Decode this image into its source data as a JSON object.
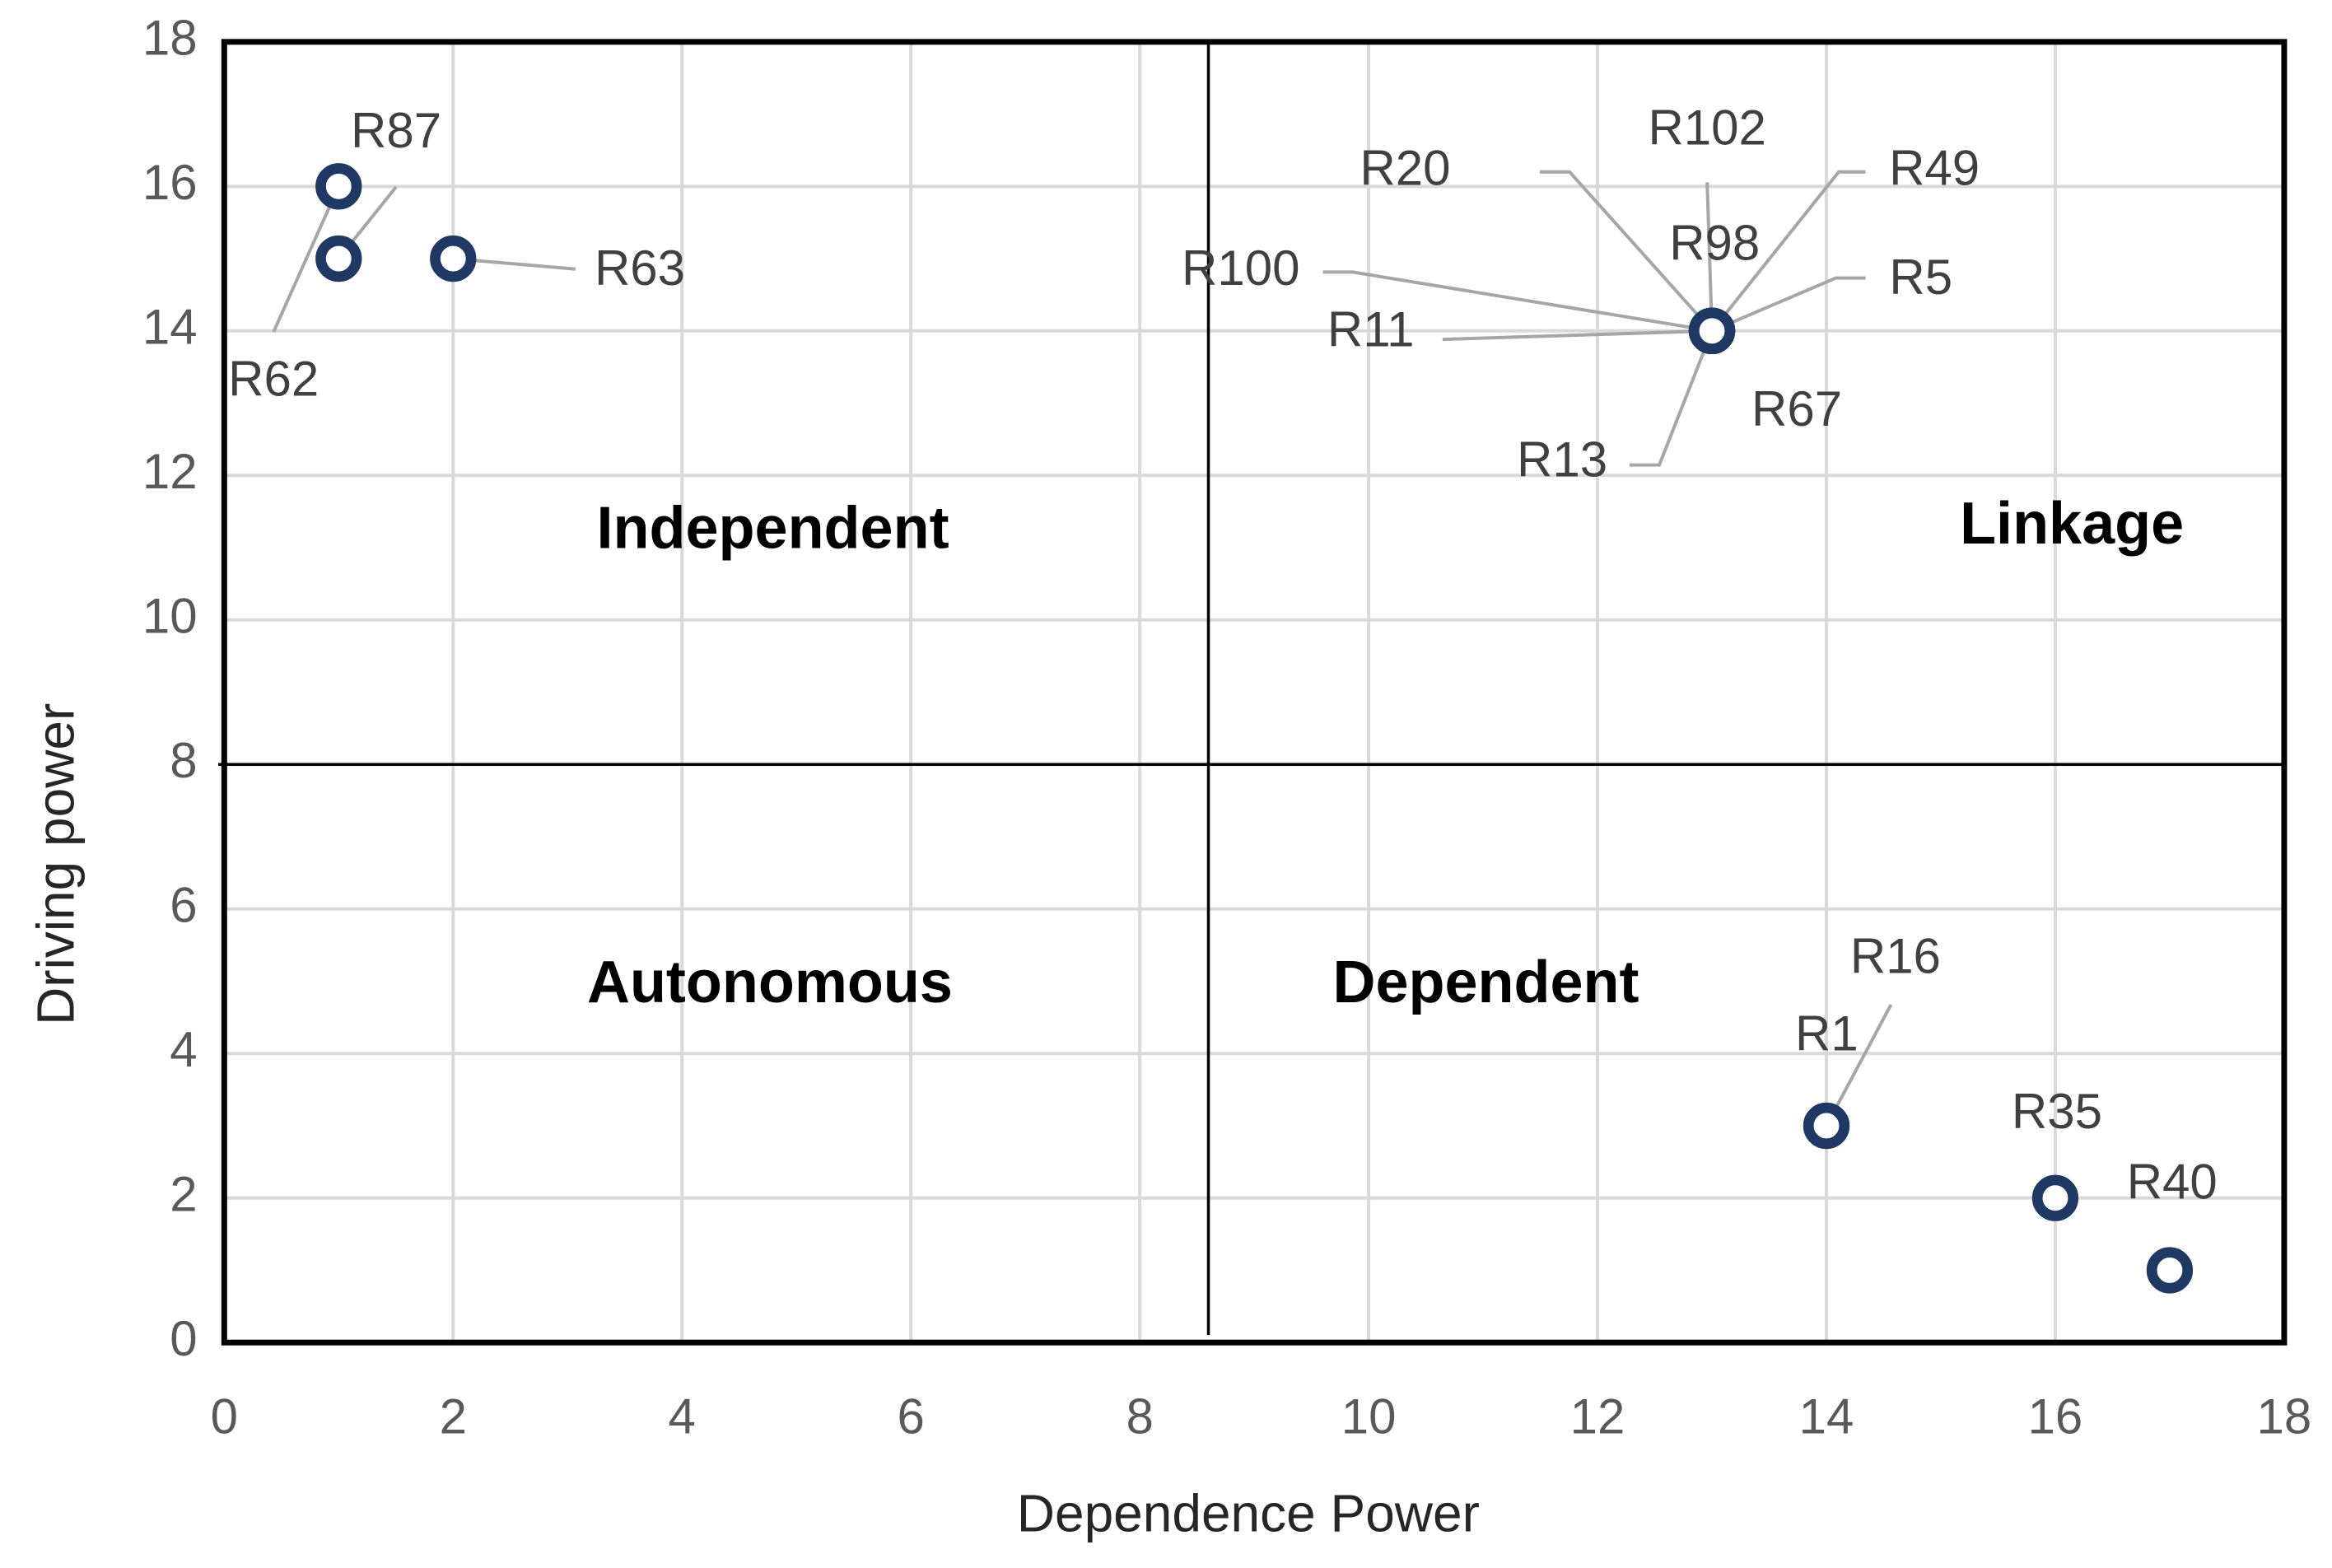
{
  "chart_data": {
    "type": "scatter",
    "x_label": "Dependence Power",
    "y_label": "Driving power",
    "labels": [
      "R87",
      "R62",
      "R63",
      "R20",
      "R102",
      "R49",
      "R100",
      "R98",
      "R5",
      "R11",
      "R67",
      "R13",
      "R1",
      "R16",
      "R35",
      "R40"
    ],
    "x": [
      1,
      1,
      2,
      13,
      13,
      13,
      13,
      13,
      13,
      13,
      13,
      13,
      14,
      14,
      16,
      17
    ],
    "values": [
      15,
      16,
      15,
      14,
      14,
      14,
      14,
      14,
      14,
      14,
      14,
      14,
      3,
      3,
      2,
      1
    ],
    "color": "#1f3864",
    "xlim": [
      0,
      18
    ],
    "ylim": [
      0,
      18
    ],
    "xticks": [
      0,
      2,
      4,
      6,
      8,
      10,
      12,
      14,
      16,
      18
    ],
    "yticks": [
      0,
      2,
      4,
      6,
      8,
      10,
      12,
      14,
      16,
      18
    ],
    "grid": true,
    "quadrant_lines": {
      "x": 8.6,
      "y": 8
    },
    "quadrants": [
      "Independent",
      "Linkage",
      "Autonomous",
      "Dependent"
    ]
  }
}
